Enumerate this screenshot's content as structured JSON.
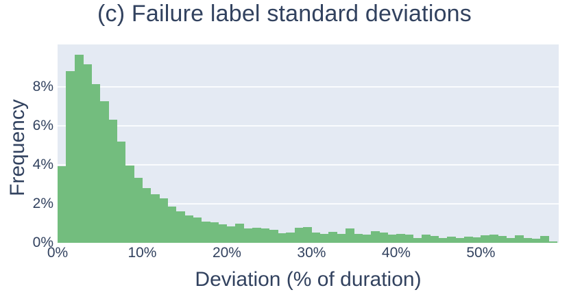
{
  "title": "(c) Failure label standard deviations",
  "colors": {
    "bar": "#73bd7e",
    "plot_bg": "#e4eaf3",
    "grid": "#fafcfe",
    "text": "#32425f"
  },
  "chart_data": {
    "type": "bar",
    "subtype": "histogram",
    "title": "(c) Failure label standard deviations",
    "xlabel": "Deviation (% of duration)",
    "ylabel": "Frequency",
    "x_tick_labels": [
      "0%",
      "10%",
      "20%",
      "30%",
      "40%",
      "50%"
    ],
    "x_tick_values": [
      0,
      10,
      20,
      30,
      40,
      50
    ],
    "y_tick_labels": [
      "0%",
      "2%",
      "4%",
      "6%",
      "8%"
    ],
    "y_tick_values": [
      0,
      2,
      4,
      6,
      8
    ],
    "xlim": [
      0,
      59.2
    ],
    "ylim": [
      0,
      10.18
    ],
    "grid": "horizontal-only",
    "legend": "none",
    "bin_width_pct": 1,
    "bin_start_pct": 0,
    "frequencies_pct": [
      3.93,
      8.82,
      9.66,
      9.15,
      8.15,
      7.25,
      6.33,
      5.2,
      3.96,
      3.33,
      2.81,
      2.48,
      2.29,
      1.87,
      1.63,
      1.42,
      1.31,
      1.1,
      1.05,
      0.96,
      0.84,
      0.98,
      0.75,
      0.78,
      0.75,
      0.67,
      0.49,
      0.51,
      0.77,
      0.81,
      0.51,
      0.47,
      0.57,
      0.47,
      0.75,
      0.47,
      0.41,
      0.61,
      0.53,
      0.43,
      0.47,
      0.41,
      0.23,
      0.43,
      0.35,
      0.26,
      0.32,
      0.26,
      0.32,
      0.28,
      0.4,
      0.43,
      0.35,
      0.23,
      0.37,
      0.26,
      0.2,
      0.34,
      0.08
    ]
  }
}
